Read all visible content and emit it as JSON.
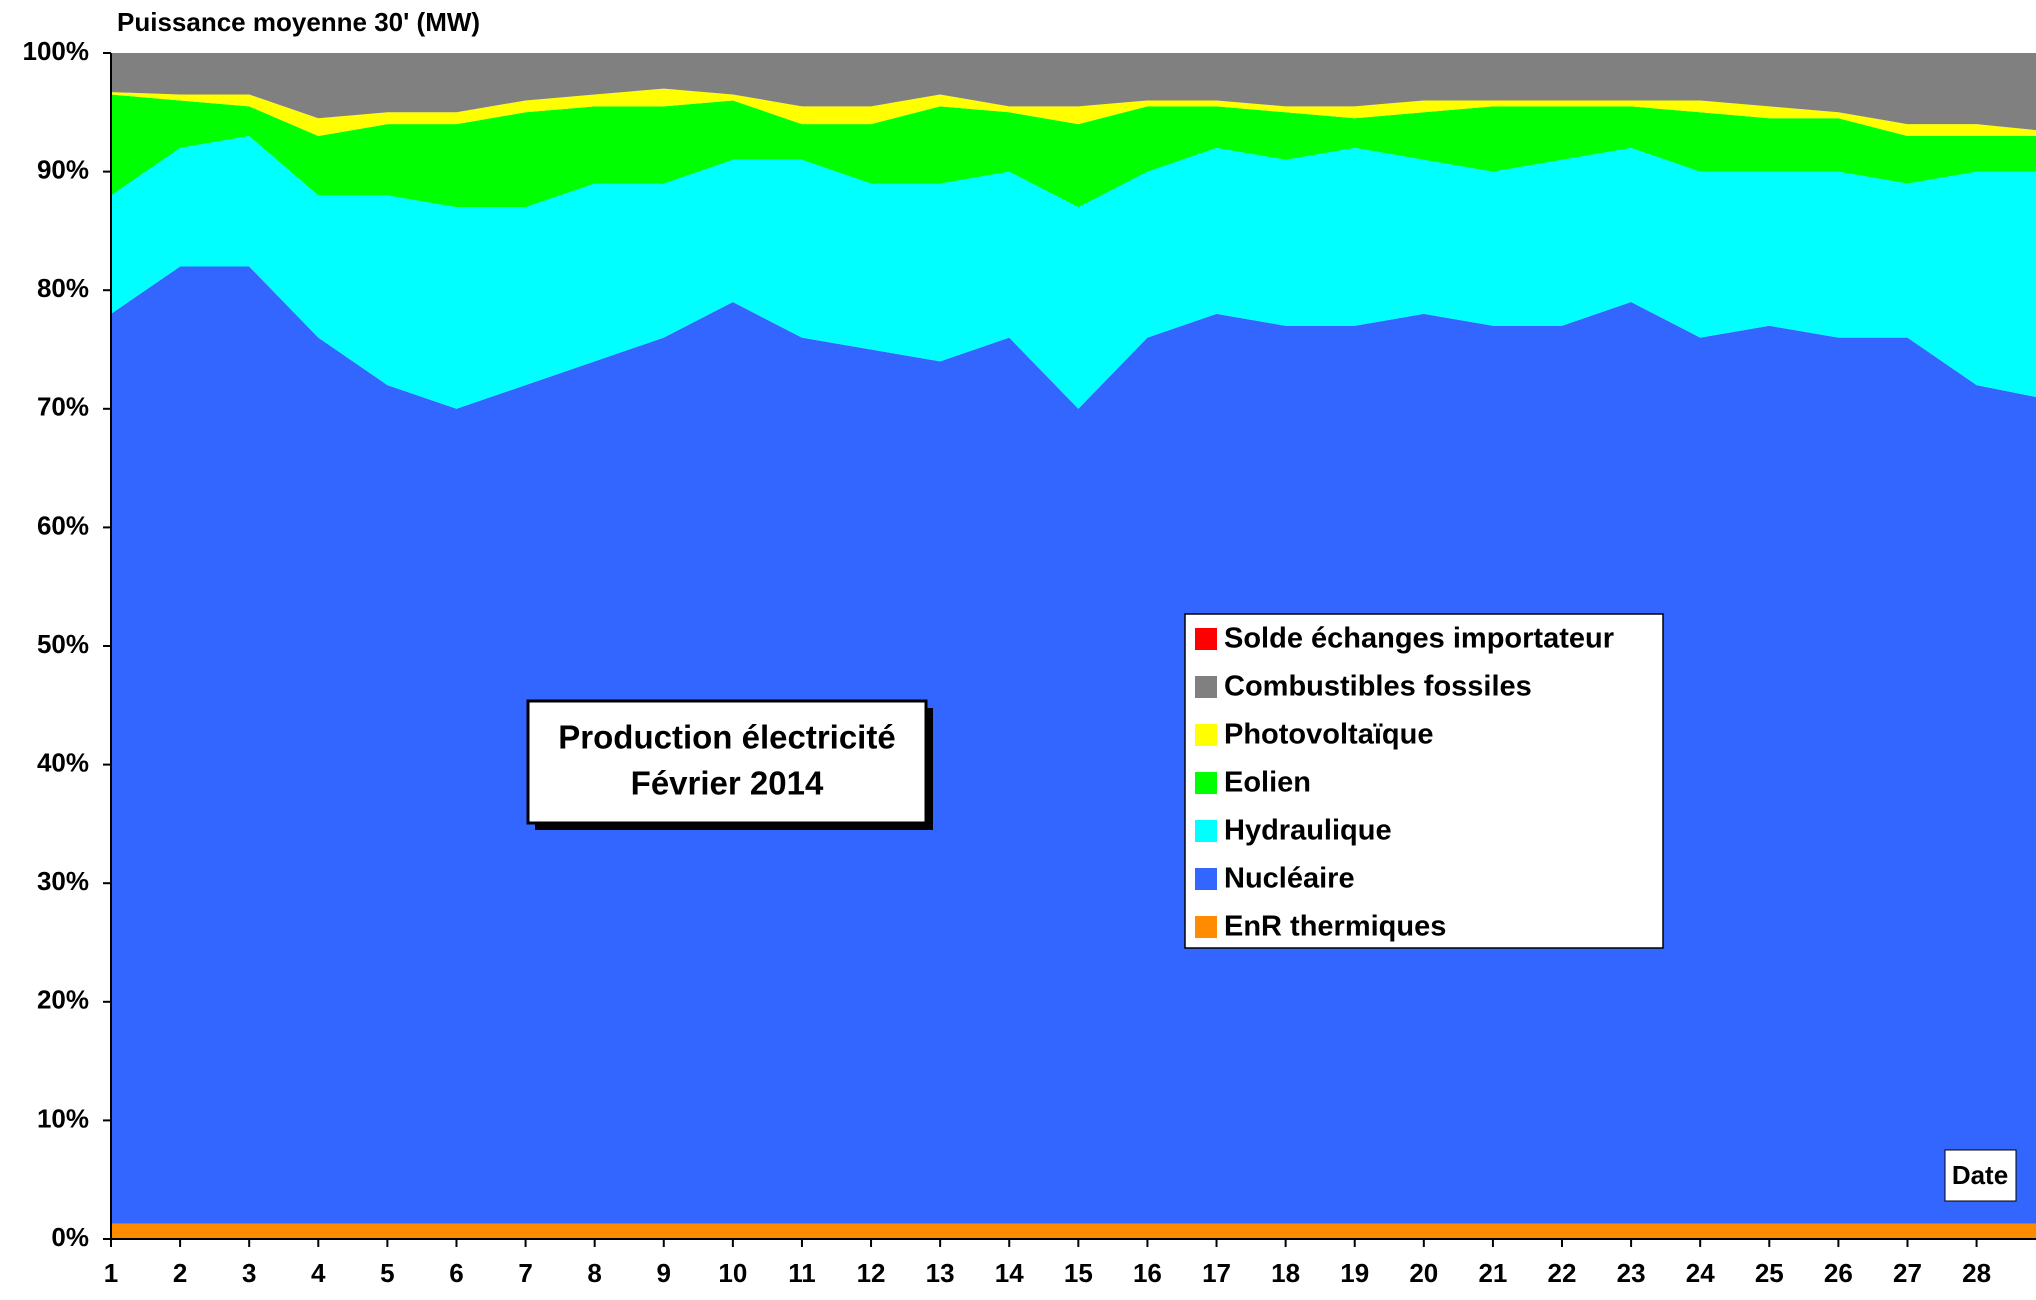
{
  "chart_data": {
    "type": "stacked-area-100",
    "title": "Production électricité",
    "subtitle": "Février 2014",
    "y_label": "Puissance moyenne 30' (MW)",
    "x_label": "Date",
    "x": [
      1,
      2,
      3,
      4,
      5,
      6,
      7,
      8,
      9,
      10,
      11,
      12,
      13,
      14,
      15,
      16,
      17,
      18,
      19,
      20,
      21,
      22,
      23,
      24,
      25,
      26,
      27,
      28,
      28.86
    ],
    "xlim": [
      1,
      28.86
    ],
    "xticks": [
      1,
      2,
      3,
      4,
      5,
      6,
      7,
      8,
      9,
      10,
      11,
      12,
      13,
      14,
      15,
      16,
      17,
      18,
      19,
      20,
      21,
      22,
      23,
      24,
      25,
      26,
      27,
      28
    ],
    "ylim": [
      0,
      100
    ],
    "yticks": [
      {
        "value": 0,
        "label": "0%"
      },
      {
        "value": 10,
        "label": "10%"
      },
      {
        "value": 20,
        "label": "20%"
      },
      {
        "value": 30,
        "label": "30%"
      },
      {
        "value": 40,
        "label": "40%"
      },
      {
        "value": 50,
        "label": "50%"
      },
      {
        "value": 60,
        "label": "60%"
      },
      {
        "value": 70,
        "label": "70%"
      },
      {
        "value": 80,
        "label": "80%"
      },
      {
        "value": 90,
        "label": "90%"
      },
      {
        "value": 100,
        "label": "100%"
      }
    ],
    "series": [
      {
        "name": "EnR thermiques",
        "color": "#ff8c00",
        "values": [
          1.3,
          1.3,
          1.3,
          1.3,
          1.3,
          1.3,
          1.3,
          1.3,
          1.3,
          1.3,
          1.3,
          1.3,
          1.3,
          1.3,
          1.3,
          1.3,
          1.3,
          1.3,
          1.3,
          1.3,
          1.3,
          1.3,
          1.3,
          1.3,
          1.3,
          1.3,
          1.3,
          1.3,
          1.3
        ]
      },
      {
        "name": "Nucléaire",
        "color": "#3366ff",
        "values": [
          76.7,
          80.7,
          80.7,
          74.7,
          70.7,
          68.7,
          70.7,
          72.7,
          74.7,
          77.7,
          74.7,
          73.7,
          72.7,
          74.7,
          68.7,
          74.7,
          76.7,
          75.7,
          75.7,
          76.7,
          75.7,
          75.7,
          77.7,
          74.7,
          75.7,
          74.7,
          74.7,
          70.7,
          69.7
        ]
      },
      {
        "name": "Hydraulique",
        "color": "#00ffff",
        "values": [
          10,
          10,
          11,
          12,
          16,
          17,
          15,
          15,
          13,
          12,
          15,
          14,
          15,
          14,
          17,
          14,
          14,
          14,
          15,
          13,
          13,
          14,
          13,
          14,
          13,
          14,
          13,
          18,
          19
        ]
      },
      {
        "name": "Eolien",
        "color": "#00ff00",
        "values": [
          8.5,
          4,
          2.5,
          5,
          6,
          7,
          8,
          6.5,
          6.5,
          5,
          3,
          5,
          6.5,
          5,
          7,
          5.5,
          3.5,
          4,
          2.5,
          4,
          5.5,
          4.5,
          3.5,
          5,
          4.5,
          4.5,
          4,
          3,
          3
        ]
      },
      {
        "name": "Photovoltaïque",
        "color": "#ffff00",
        "values": [
          0.2,
          0.5,
          1,
          1.5,
          1,
          1,
          1,
          1,
          1.5,
          0.5,
          1.5,
          1.5,
          1,
          0.5,
          1.5,
          0.5,
          0.5,
          0.5,
          1,
          1,
          0.5,
          0.5,
          0.5,
          1,
          1,
          0.5,
          1,
          1,
          0.5
        ]
      },
      {
        "name": "Combustibles fossiles",
        "color": "#808080",
        "values": [
          3.3,
          3.5,
          3.5,
          5.5,
          5,
          5,
          4,
          3.5,
          3,
          3.5,
          4.5,
          4.5,
          3.5,
          4.5,
          4.5,
          4,
          4,
          4.5,
          4.5,
          4,
          4,
          4,
          4,
          4,
          4.5,
          5,
          6,
          6,
          6.5
        ]
      },
      {
        "name": "Solde échanges importateur",
        "color": "#ff0000",
        "values": [
          0,
          0,
          0,
          0,
          0,
          0,
          0,
          0,
          0,
          0,
          0,
          0,
          0,
          0,
          0,
          0,
          0,
          0,
          0,
          0,
          0,
          0,
          0,
          0,
          0,
          0,
          0,
          0,
          0
        ]
      }
    ]
  }
}
